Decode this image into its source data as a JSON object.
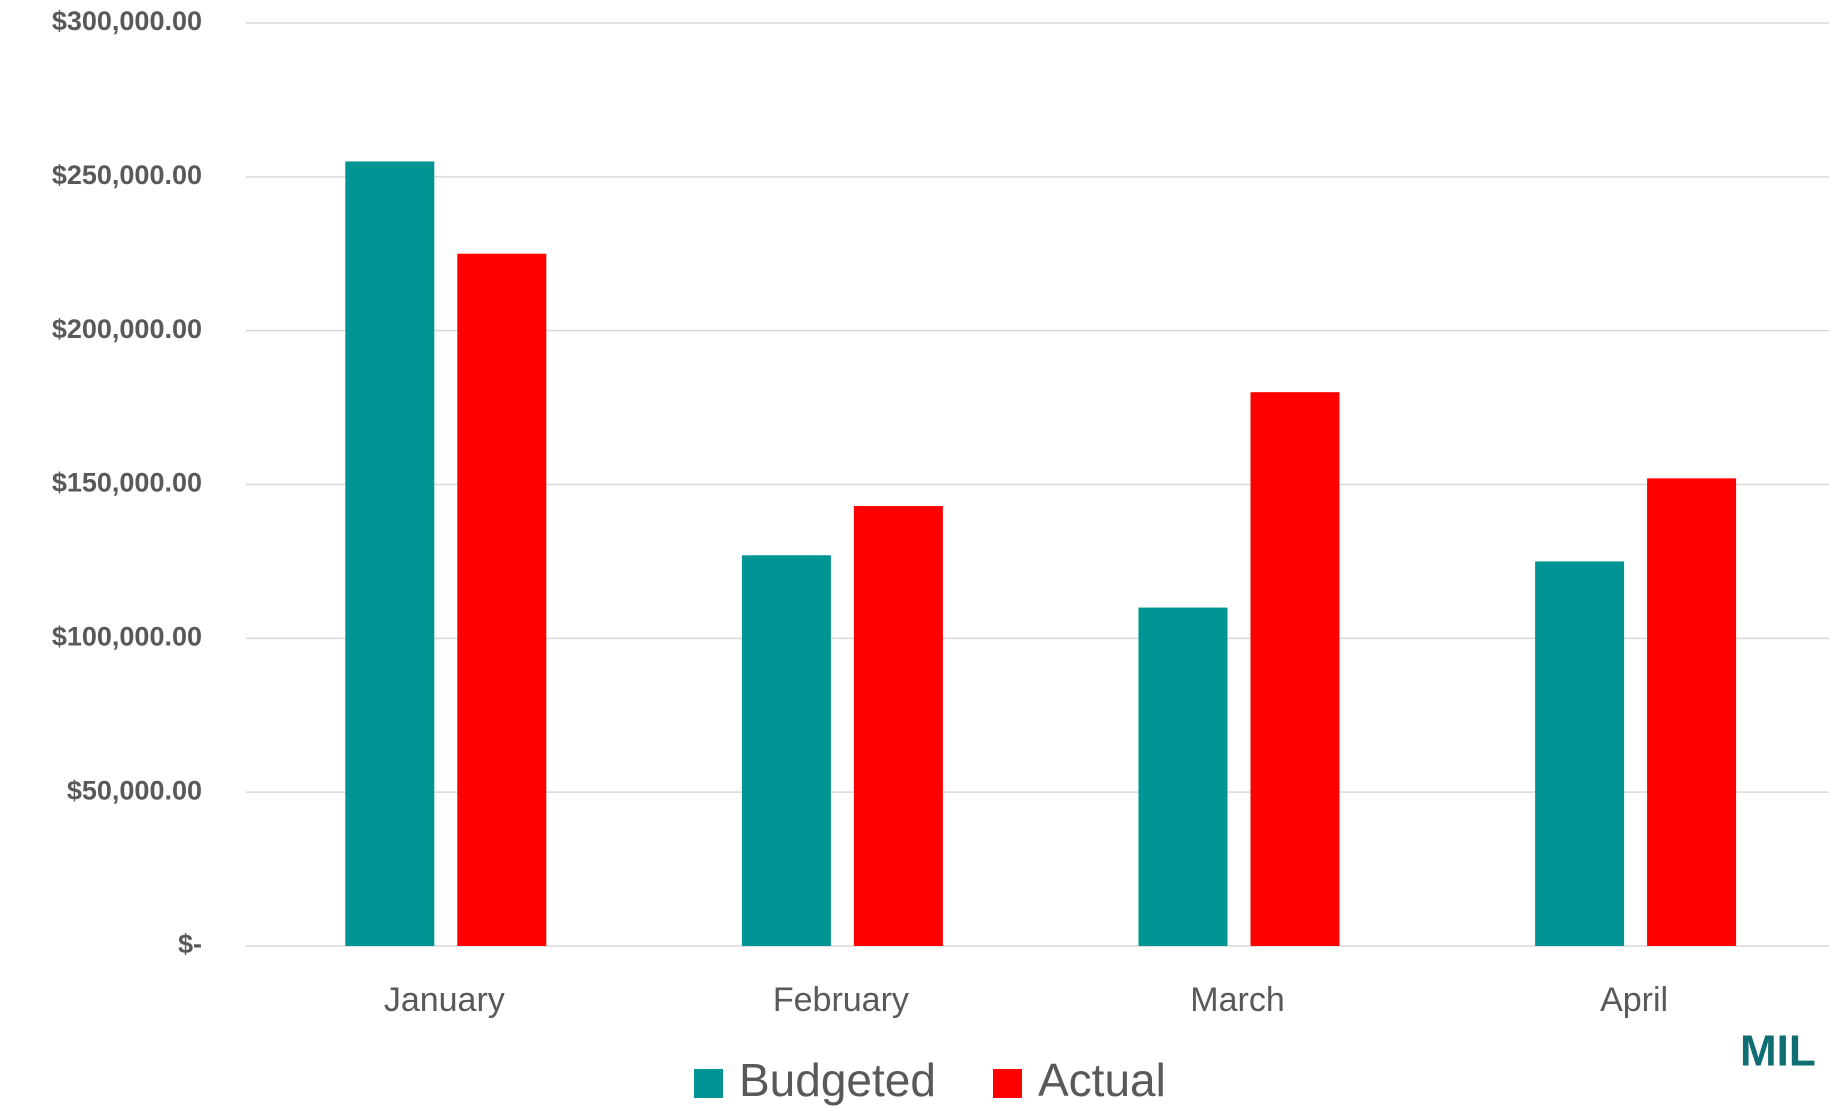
{
  "chart_data": {
    "type": "bar",
    "categories": [
      "January",
      "February",
      "March",
      "April"
    ],
    "series": [
      {
        "name": "Budgeted",
        "color": "#009494",
        "values": [
          255000,
          127000,
          110000,
          125000
        ]
      },
      {
        "name": "Actual",
        "color": "#ff0000",
        "values": [
          225000,
          143000,
          180000,
          152000
        ]
      }
    ],
    "ylim": [
      0,
      300000
    ],
    "yticks": [
      {
        "value": 0,
        "label": "$-"
      },
      {
        "value": 50000,
        "label": "$50,000.00"
      },
      {
        "value": 100000,
        "label": "$100,000.00"
      },
      {
        "value": 150000,
        "label": "$150,000.00"
      },
      {
        "value": 200000,
        "label": "$200,000.00"
      },
      {
        "value": 250000,
        "label": "$250,000.00"
      },
      {
        "value": 300000,
        "label": "$300,000.00"
      }
    ],
    "grid": true,
    "legend": "bottom",
    "logo": "MIL"
  }
}
